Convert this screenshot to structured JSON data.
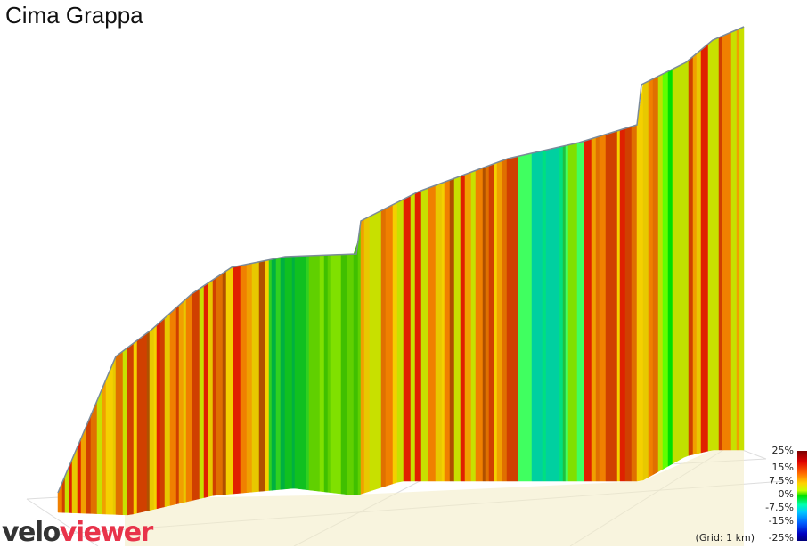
{
  "title": "Cima Grappa",
  "chart_data": {
    "type": "area",
    "title": "Cima Grappa",
    "style": "3d-elevation-profile",
    "color_encoding": "gradient",
    "colorbar": {
      "ticks": [
        "25%",
        "15%",
        "7.5%",
        "0%",
        "-7.5%",
        "-15%",
        "-25%"
      ],
      "range": [
        -25,
        25
      ],
      "colors": [
        "#7a0000",
        "#e00000",
        "#ff6a00",
        "#ffd200",
        "#00e000",
        "#00c8ff",
        "#0000c0"
      ]
    },
    "grid_note": "(Grid: 1 km)",
    "grid": true
  },
  "logo": {
    "part1": "velo",
    "part2": "viewer"
  }
}
